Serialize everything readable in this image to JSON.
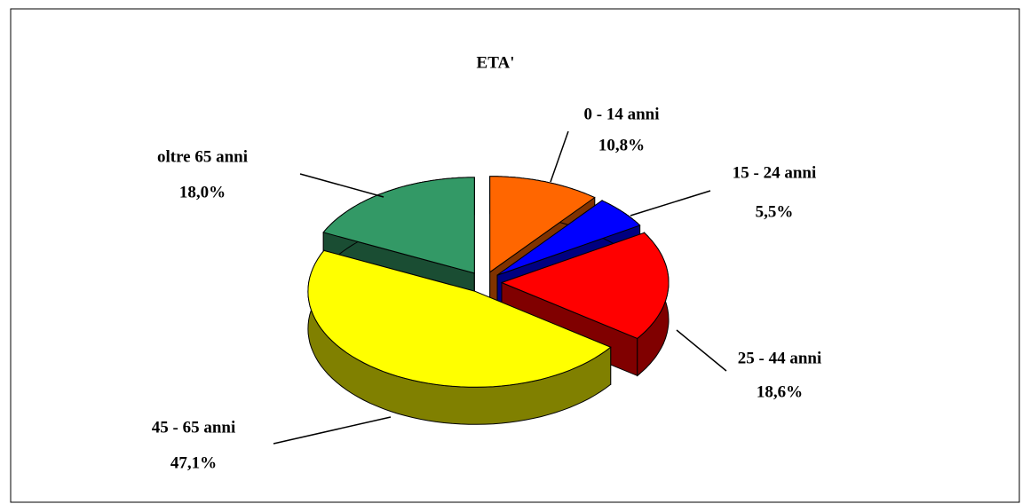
{
  "chart_data": {
    "type": "pie3d",
    "title": "ETA'",
    "categories": [
      "0 - 14 anni",
      "15 - 24 anni",
      "25 - 44 anni",
      "45 - 65 anni",
      "oltre 65 anni"
    ],
    "values": [
      10.8,
      5.5,
      18.6,
      47.1,
      18.0
    ],
    "value_labels": [
      "10,8%",
      "5,5%",
      "18,6%",
      "47,1%",
      "18,0%"
    ],
    "colors": [
      "#FF6600",
      "#0000FF",
      "#FF0000",
      "#FFFF00",
      "#339966"
    ]
  }
}
